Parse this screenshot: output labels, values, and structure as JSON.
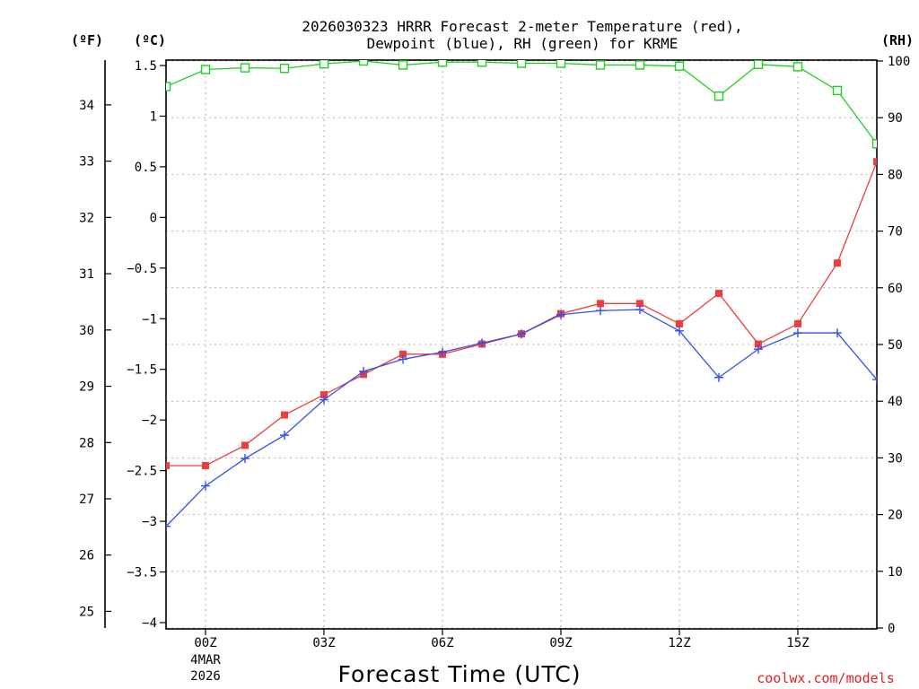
{
  "chart_data": {
    "type": "line",
    "title": "2026030323 HRRR Forecast 2-meter Temperature (red),",
    "subtitle": "Dewpoint (blue), RH (green) for KRME",
    "xlabel": "Forecast Time (UTC)",
    "left_unit_f": "(ºF)",
    "left_unit_c": "(ºC)",
    "right_unit": "(RH)",
    "credit": "coolwx.com/models",
    "x_hours": [
      -1,
      0,
      1,
      2,
      3,
      4,
      5,
      6,
      7,
      8,
      9,
      10,
      11,
      12,
      13,
      14,
      15,
      16,
      17
    ],
    "x_ticks": [
      {
        "hour": 0,
        "label": "00Z",
        "sub": [
          "4MAR",
          "2026"
        ]
      },
      {
        "hour": 3,
        "label": "03Z",
        "sub": []
      },
      {
        "hour": 6,
        "label": "06Z",
        "sub": []
      },
      {
        "hour": 9,
        "label": "09Z",
        "sub": []
      },
      {
        "hour": 12,
        "label": "12Z",
        "sub": []
      },
      {
        "hour": 15,
        "label": "15Z",
        "sub": []
      }
    ],
    "xlim": [
      -1,
      17
    ],
    "ylim_c": [
      -4,
      1.5
    ],
    "ylim_rh": [
      0,
      100
    ],
    "y_ticks_c": [
      "1.5",
      "1",
      "0.5",
      "0",
      "−0.5",
      "−1",
      "−1.5",
      "−2",
      "−2.5",
      "−3",
      "−3.5",
      "−4"
    ],
    "y_ticks_f": [
      "34",
      "33",
      "32",
      "31",
      "30",
      "29",
      "28",
      "27",
      "26",
      "25"
    ],
    "y_ticks_rh": [
      "100",
      "90",
      "80",
      "70",
      "60",
      "50",
      "40",
      "30",
      "20",
      "10",
      "0"
    ],
    "series": [
      {
        "name": "Temperature",
        "axis": "c",
        "color": "#f03c3c",
        "marker": "filled-square",
        "values": [
          -2.45,
          -2.45,
          -2.25,
          -1.95,
          -1.75,
          -1.55,
          -1.35,
          -1.35,
          -1.25,
          -1.15,
          -0.95,
          -0.85,
          -0.85,
          -1.05,
          -0.75,
          -1.25,
          -1.05,
          -0.45,
          0.55
        ]
      },
      {
        "name": "Dewpoint",
        "axis": "c",
        "color": "#3050f0",
        "marker": "plus",
        "values": [
          -3.05,
          -2.65,
          -2.38,
          -2.15,
          -1.8,
          -1.52,
          -1.4,
          -1.33,
          -1.24,
          -1.15,
          -0.96,
          -0.92,
          -0.91,
          -1.12,
          -1.58,
          -1.3,
          -1.14,
          -1.14,
          -1.6
        ]
      },
      {
        "name": "RH",
        "axis": "rh",
        "color": "#20d020",
        "marker": "open-square",
        "values": [
          95.5,
          98.5,
          98.8,
          98.7,
          99.5,
          100,
          99.3,
          99.8,
          99.8,
          99.6,
          99.6,
          99.3,
          99.3,
          99.1,
          93.8,
          99.4,
          99,
          94.8,
          85.4
        ]
      }
    ]
  }
}
